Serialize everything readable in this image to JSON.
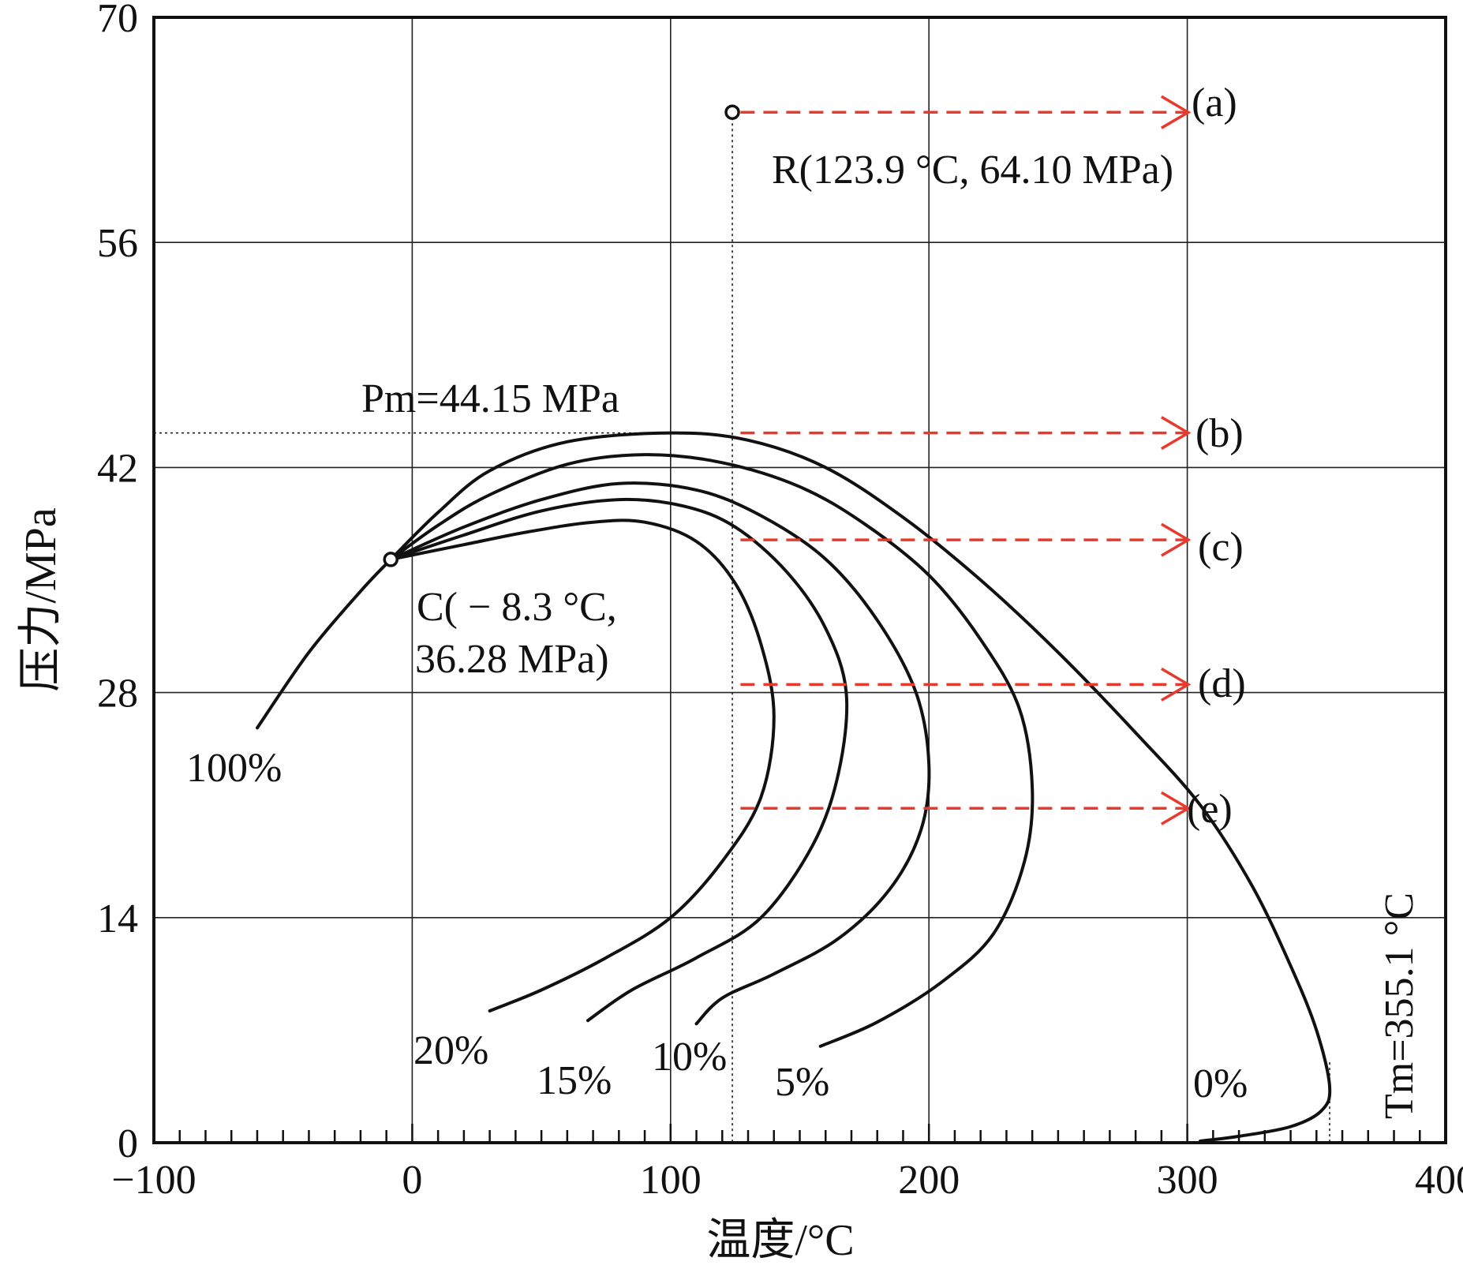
{
  "chart_data": {
    "type": "line",
    "title": "",
    "xlabel": "温度/°C",
    "ylabel": "压力/MPa",
    "xlim": [
      -100,
      400
    ],
    "ylim": [
      0,
      70
    ],
    "xticks": [
      -100,
      0,
      100,
      200,
      300,
      400
    ],
    "yticks": [
      0,
      14,
      28,
      42,
      56,
      70
    ],
    "xtick_labels": [
      "−100",
      "0",
      "100",
      "200",
      "300",
      "400"
    ],
    "ytick_labels": [
      "0",
      "14",
      "28",
      "42",
      "56",
      "70"
    ],
    "grid": true,
    "colors": {
      "curve": "#111111",
      "arrow": "#e8392d",
      "grid": "#222222"
    },
    "series": [
      {
        "name": "100%",
        "points": [
          [
            -60,
            25.8
          ],
          [
            -40,
            30.5
          ],
          [
            -20,
            34.3
          ],
          [
            -8.3,
            36.28
          ]
        ]
      },
      {
        "name": "0%",
        "points": [
          [
            -8.3,
            36.28
          ],
          [
            10,
            39.2
          ],
          [
            30,
            41.8
          ],
          [
            60,
            43.6
          ],
          [
            100,
            44.15
          ],
          [
            130,
            43.7
          ],
          [
            160,
            42.0
          ],
          [
            190,
            38.9
          ],
          [
            220,
            35.0
          ],
          [
            250,
            30.5
          ],
          [
            280,
            25.5
          ],
          [
            305,
            21.0
          ],
          [
            325,
            16.0
          ],
          [
            340,
            11.0
          ],
          [
            350,
            7.0
          ],
          [
            355.1,
            3.5
          ],
          [
            352,
            2.0
          ],
          [
            340,
            1.0
          ],
          [
            320,
            0.4
          ],
          [
            305,
            0.1
          ]
        ]
      },
      {
        "name": "5%",
        "points": [
          [
            -8.3,
            36.28
          ],
          [
            10,
            38.4
          ],
          [
            30,
            40.3
          ],
          [
            60,
            42.2
          ],
          [
            90,
            42.8
          ],
          [
            120,
            42.3
          ],
          [
            150,
            40.8
          ],
          [
            175,
            38.5
          ],
          [
            200,
            35.3
          ],
          [
            220,
            31.3
          ],
          [
            235,
            27.0
          ],
          [
            240,
            22.0
          ],
          [
            237,
            17.5
          ],
          [
            225,
            13.0
          ],
          [
            205,
            10.0
          ],
          [
            180,
            7.5
          ],
          [
            158,
            6.0
          ]
        ]
      },
      {
        "name": "10%",
        "points": [
          [
            -8.3,
            36.28
          ],
          [
            20,
            38.3
          ],
          [
            50,
            40.0
          ],
          [
            80,
            41.0
          ],
          [
            110,
            40.6
          ],
          [
            135,
            39.0
          ],
          [
            160,
            36.3
          ],
          [
            180,
            32.5
          ],
          [
            195,
            28.0
          ],
          [
            200,
            23.5
          ],
          [
            197,
            19.5
          ],
          [
            185,
            15.8
          ],
          [
            165,
            12.7
          ],
          [
            140,
            10.5
          ],
          [
            120,
            9.0
          ],
          [
            110,
            7.4
          ]
        ]
      },
      {
        "name": "15%",
        "points": [
          [
            -8.3,
            36.28
          ],
          [
            20,
            37.8
          ],
          [
            50,
            39.3
          ],
          [
            80,
            40.0
          ],
          [
            105,
            39.6
          ],
          [
            125,
            38.3
          ],
          [
            145,
            35.5
          ],
          [
            160,
            32.0
          ],
          [
            168,
            28.0
          ],
          [
            165,
            23.0
          ],
          [
            155,
            18.5
          ],
          [
            135,
            14.0
          ],
          [
            110,
            11.5
          ],
          [
            85,
            9.5
          ],
          [
            68,
            7.6
          ]
        ]
      },
      {
        "name": "20%",
        "points": [
          [
            -8.3,
            36.28
          ],
          [
            20,
            37.2
          ],
          [
            45,
            38.0
          ],
          [
            70,
            38.6
          ],
          [
            90,
            38.6
          ],
          [
            110,
            37.4
          ],
          [
            125,
            34.8
          ],
          [
            135,
            31.0
          ],
          [
            140,
            26.5
          ],
          [
            135,
            21.5
          ],
          [
            120,
            17.5
          ],
          [
            100,
            14.0
          ],
          [
            75,
            11.5
          ],
          [
            50,
            9.5
          ],
          [
            30,
            8.2
          ]
        ]
      }
    ],
    "points": [
      {
        "name": "R",
        "label": "R(123.9 °C, 64.10 MPa)",
        "x": 123.9,
        "y": 64.1
      },
      {
        "name": "C",
        "label_line1": "C( − 8.3 °C,",
        "label_line2": "36.28 MPa)",
        "x": -8.3,
        "y": 36.28
      }
    ],
    "annotations": {
      "pm": {
        "label": "Pm=44.15 MPa",
        "y": 44.15
      },
      "tm": {
        "label": "Tm=355.1 °C",
        "x": 355.1
      }
    },
    "arrows": [
      {
        "label": "(a)",
        "y": 64.1,
        "x_start": 124,
        "x_end": 301
      },
      {
        "label": "(b)",
        "y": 44.15,
        "x_start": 124,
        "x_end": 301
      },
      {
        "label": "(c)",
        "y": 37.5,
        "x_start": 124,
        "x_end": 301
      },
      {
        "label": "(d)",
        "y": 28.5,
        "x_start": 124,
        "x_end": 301
      },
      {
        "label": "(e)",
        "y": 20.8,
        "x_start": 124,
        "x_end": 301
      }
    ]
  }
}
